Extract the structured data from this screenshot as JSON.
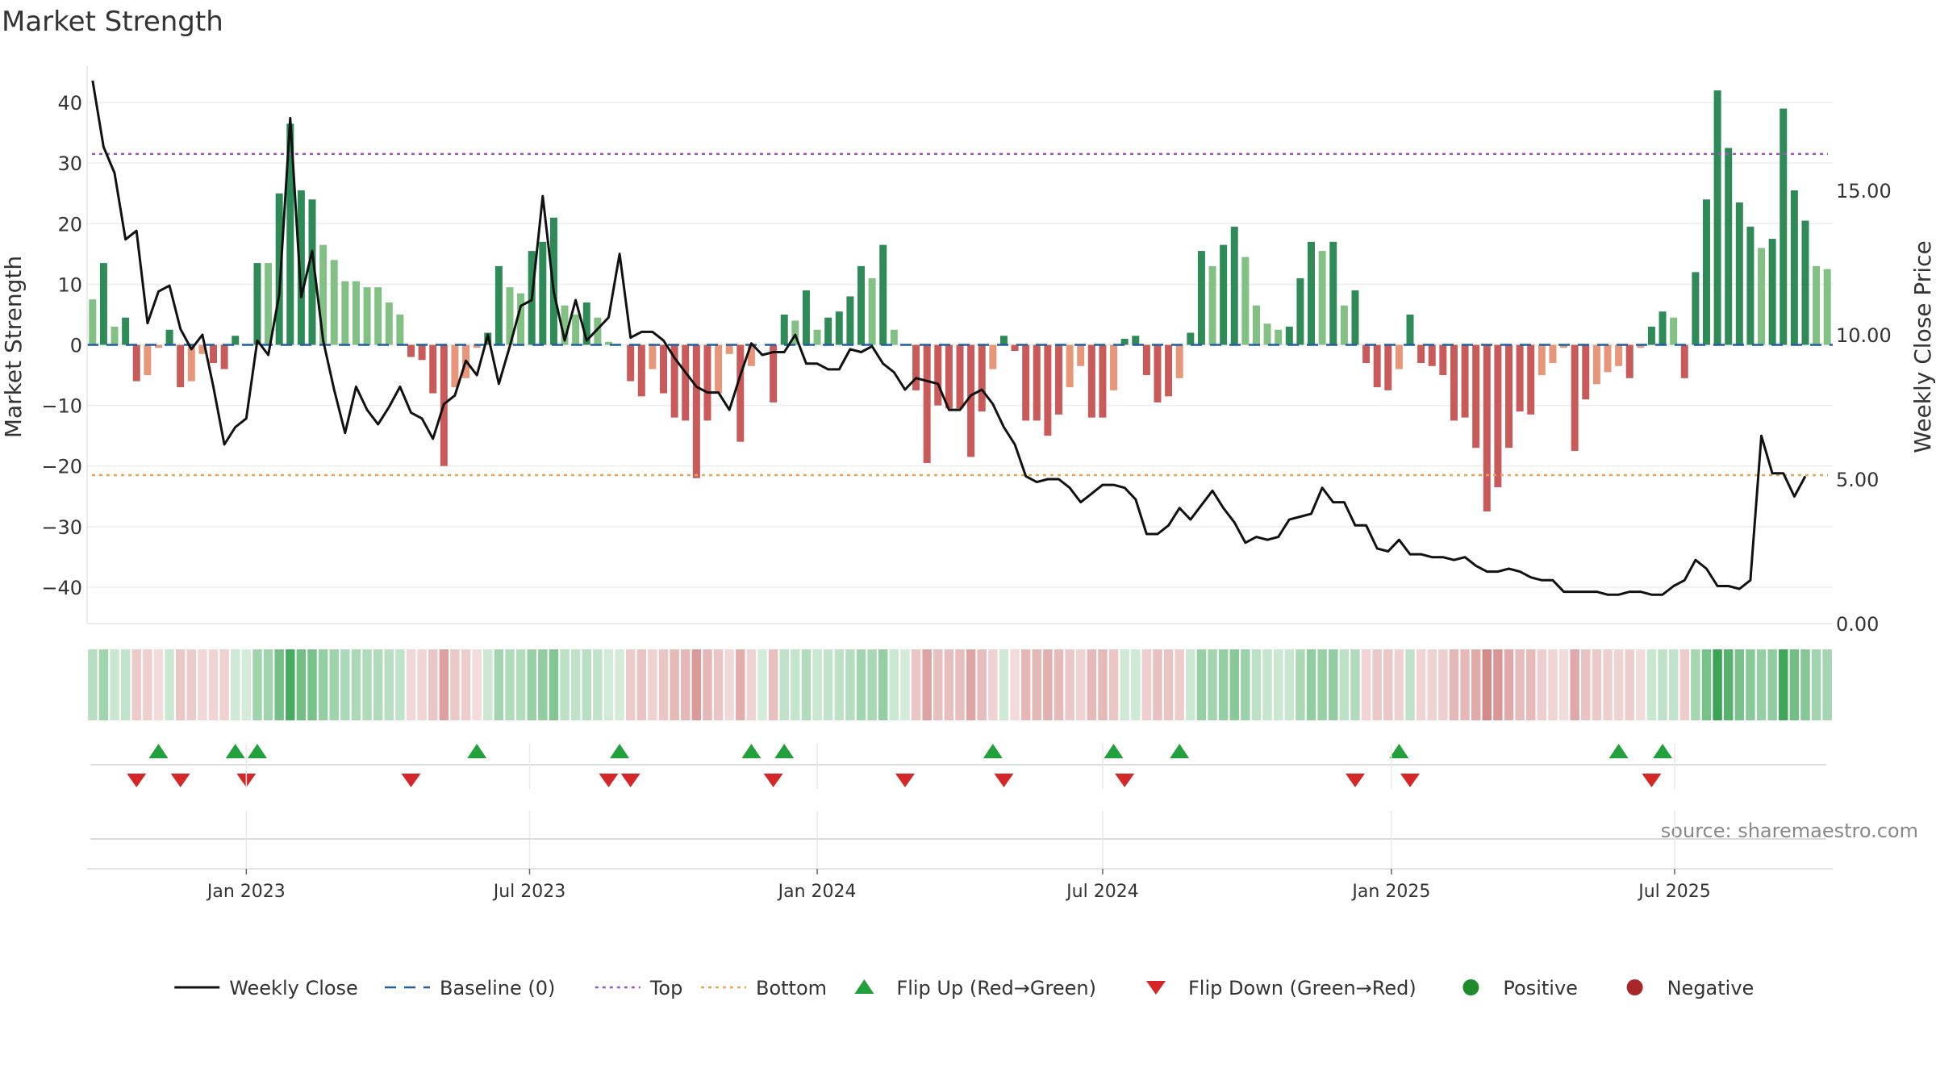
{
  "chart_data": {
    "type": "bar",
    "title": "Market Strength",
    "ylabel": "Market Strength",
    "y2label": "Weekly Close Price",
    "ylim": [
      -46,
      46
    ],
    "y2lim": [
      0,
      19.3
    ],
    "y_ticks": [
      40,
      30,
      20,
      10,
      0,
      -10,
      -20,
      -30,
      -40
    ],
    "y_tick_labels": [
      "40",
      "30",
      "20",
      "10",
      "0",
      "−10",
      "−20",
      "−30",
      "−40"
    ],
    "y2_ticks": [
      15,
      10,
      5,
      0
    ],
    "y2_tick_labels": [
      "15.00",
      "10.00",
      "5.00",
      "0.00"
    ],
    "x_ticks": [
      {
        "label": "Jan 2023",
        "week": 14.5
      },
      {
        "label": "Jul 2023",
        "week": 40.3
      },
      {
        "label": "Jan 2024",
        "week": 66.5
      },
      {
        "label": "Jul 2024",
        "week": 92.5
      },
      {
        "label": "Jan 2025",
        "week": 118.8
      },
      {
        "label": "Jul 2025",
        "week": 144.6
      }
    ],
    "top_level": 31.5,
    "bottom_level": -21.5,
    "source_text": "source: sharemaestro.com",
    "colors": {
      "strong_pos": "#2e8b57",
      "weak_pos": "#82c084",
      "strong_neg": "#c85a5a",
      "weak_neg": "#e8967a",
      "close": "#111111",
      "baseline": "#1f5f9e",
      "top": "#9b59b6",
      "bottom": "#e8a25a",
      "flip_up": "#22a03c",
      "flip_down": "#d62728",
      "positive": "#1e8c2a",
      "negative": "#a82828"
    },
    "strength": [
      7.5,
      13.5,
      3,
      4.5,
      -6,
      -5,
      -0.5,
      2.5,
      -7,
      -6,
      -1.5,
      -3,
      -4,
      1.5,
      0,
      13.5,
      13.5,
      25,
      36.5,
      25.5,
      24,
      16.5,
      14,
      10.5,
      10.5,
      9.5,
      9.5,
      7,
      5,
      -2,
      -2.5,
      -8,
      -20,
      -7,
      -5.5,
      -0.5,
      2,
      13,
      9.5,
      8.5,
      15.5,
      17,
      21,
      6.5,
      5,
      7,
      4.5,
      0.5,
      0,
      -6,
      -8.5,
      -4,
      -8,
      -12,
      -12.5,
      -22,
      -12.5,
      -8,
      -1.5,
      -16,
      -3.5,
      0,
      -9.5,
      5,
      4,
      9,
      2.5,
      4.5,
      5.5,
      8,
      13,
      11,
      16.5,
      2.5,
      0,
      -7.5,
      -19.5,
      -10,
      -10.5,
      -10.5,
      -18.5,
      -11,
      -4,
      1.5,
      -1,
      -12.5,
      -12.5,
      -15,
      -11.5,
      -7,
      -3.5,
      -12,
      -12,
      -7.5,
      1,
      1.5,
      -5,
      -9.5,
      -8.5,
      -5.5,
      2,
      15.5,
      13,
      16.5,
      19.5,
      14.5,
      6.5,
      3.5,
      2.5,
      3,
      11,
      17,
      15.5,
      17,
      6.5,
      9,
      -3,
      -7,
      -7.5,
      -4,
      5,
      -3,
      -3.5,
      -5,
      -12.5,
      -12,
      -17,
      -27.5,
      -23.5,
      -17,
      -11,
      -11.5,
      -5,
      -3,
      -0.5,
      -17.5,
      -9,
      -6.5,
      -4.5,
      -3.5,
      -5.5,
      -0.5,
      3,
      5.5,
      4.5,
      -5.5,
      12,
      24,
      42,
      32.5,
      23.5,
      19.5,
      16,
      17.5,
      39,
      25.5,
      20.5,
      13,
      12.5
    ],
    "weekly_close": [
      18.8,
      16.5,
      15.6,
      13.3,
      13.6,
      10.4,
      11.5,
      11.7,
      10.2,
      9.5,
      10.0,
      8.2,
      6.2,
      6.8,
      7.1,
      9.8,
      9.3,
      11.4,
      17.5,
      11.3,
      12.9,
      9.8,
      8.1,
      6.6,
      8.2,
      7.4,
      6.9,
      7.5,
      8.2,
      7.3,
      7.1,
      6.4,
      7.6,
      7.9,
      9.1,
      8.6,
      10.0,
      8.3,
      9.6,
      11.0,
      11.2,
      14.8,
      11.5,
      9.8,
      11.2,
      9.8,
      10.2,
      10.6,
      12.8,
      9.9,
      10.1,
      10.1,
      9.8,
      9.2,
      8.7,
      8.2,
      8.0,
      8.0,
      7.4,
      8.6,
      9.7,
      9.3,
      9.4,
      9.4,
      10.0,
      9.0,
      9.0,
      8.8,
      8.8,
      9.5,
      9.4,
      9.6,
      9.0,
      8.7,
      8.1,
      8.5,
      8.4,
      8.3,
      7.4,
      7.4,
      7.9,
      8.1,
      7.6,
      6.8,
      6.2,
      5.1,
      4.9,
      5.0,
      5.0,
      4.7,
      4.2,
      4.5,
      4.8,
      4.8,
      4.7,
      4.3,
      3.1,
      3.1,
      3.4,
      4.0,
      3.6,
      4.1,
      4.6,
      4.0,
      3.5,
      2.8,
      3.0,
      2.9,
      3.0,
      3.6,
      3.7,
      3.8,
      4.7,
      4.2,
      4.2,
      3.4,
      3.4,
      2.6,
      2.5,
      2.9,
      2.4,
      2.4,
      2.3,
      2.3,
      2.2,
      2.3,
      2.0,
      1.8,
      1.8,
      1.9,
      1.8,
      1.6,
      1.5,
      1.5,
      1.1,
      1.1,
      1.1,
      1.1,
      1.0,
      1.0,
      1.1,
      1.1,
      1.0,
      1.0,
      1.3,
      1.5,
      2.2,
      1.9,
      1.3,
      1.3,
      1.2,
      1.5,
      6.5,
      5.2,
      5.2,
      4.4,
      5.1
    ],
    "flips_up": [
      6,
      13,
      15,
      35,
      48,
      60,
      63,
      82,
      93,
      99,
      119,
      139,
      143
    ],
    "flips_down": [
      4,
      8,
      14,
      29,
      47,
      49,
      62,
      74,
      83,
      94,
      115,
      120,
      142
    ],
    "legend": [
      {
        "key": "close",
        "label": "Weekly Close"
      },
      {
        "key": "baseline",
        "label": "Baseline (0)"
      },
      {
        "key": "top",
        "label": "Top"
      },
      {
        "key": "bottom",
        "label": "Bottom"
      },
      {
        "key": "flip_up",
        "label": "Flip Up (Red→Green)"
      },
      {
        "key": "flip_down",
        "label": "Flip Down (Green→Red)"
      },
      {
        "key": "positive",
        "label": "Positive"
      },
      {
        "key": "negative",
        "label": "Negative"
      }
    ]
  }
}
